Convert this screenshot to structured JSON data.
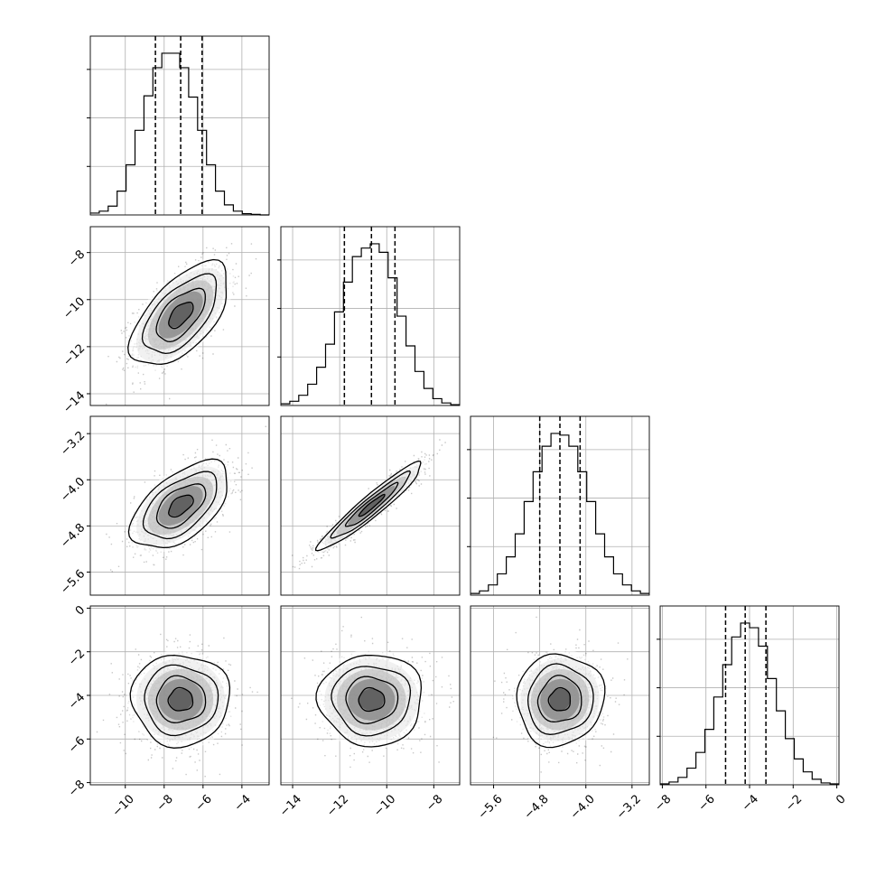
{
  "chart_data": {
    "type": "corner",
    "grid": true,
    "colors": {
      "ink": "#000000",
      "grid": "#b0b0b0",
      "scatter": "#000000"
    },
    "parameters": [
      {
        "ticks": [
          -10,
          -8,
          -6,
          -4
        ],
        "tick_labels": [
          "−10",
          "−8",
          "−6",
          "−4"
        ],
        "range": [
          -11.8,
          -2.6
        ]
      },
      {
        "ticks": [
          -14,
          -12,
          -10,
          -8
        ],
        "tick_labels": [
          "−14",
          "−12",
          "−10",
          "−8"
        ],
        "range": [
          -14.5,
          -6.9
        ]
      },
      {
        "ticks": [
          -5.6,
          -4.8,
          -4.0,
          -3.2
        ],
        "tick_labels": [
          "−5.6",
          "−4.8",
          "−4.0",
          "−3.2"
        ],
        "range": [
          -6.0,
          -2.9
        ]
      },
      {
        "ticks": [
          -8,
          -6,
          -4,
          -2,
          0
        ],
        "tick_labels": [
          "−8",
          "−6",
          "−4",
          "−2",
          "0"
        ],
        "range": [
          -8.1,
          0.1
        ]
      }
    ],
    "marginals": [
      {
        "quantiles": [
          -8.45,
          -7.15,
          -6.05
        ],
        "bin_edges": [
          -11.8,
          -11.34,
          -10.88,
          -10.42,
          -9.96,
          -9.5,
          -9.04,
          -8.58,
          -8.12,
          -7.66,
          -7.2,
          -6.74,
          -6.28,
          -5.82,
          -5.36,
          -4.9,
          -4.44,
          -3.98,
          -3.52,
          -3.06,
          -2.6
        ],
        "counts": [
          3,
          6,
          14,
          38,
          80,
          135,
          190,
          235,
          258,
          258,
          235,
          188,
          135,
          80,
          38,
          16,
          6,
          2,
          1,
          0
        ]
      },
      {
        "quantiles": [
          -11.8,
          -10.65,
          -9.65
        ],
        "bin_edges": [
          -14.5,
          -14.12,
          -13.74,
          -13.36,
          -12.98,
          -12.6,
          -12.22,
          -11.84,
          -11.46,
          -11.08,
          -10.7,
          -10.32,
          -9.94,
          -9.56,
          -9.18,
          -8.8,
          -8.42,
          -8.04,
          -7.66,
          -7.28,
          -6.9
        ],
        "counts": [
          2,
          5,
          12,
          25,
          45,
          72,
          110,
          145,
          175,
          185,
          190,
          180,
          150,
          105,
          70,
          40,
          20,
          8,
          3,
          1
        ]
      },
      {
        "quantiles": [
          -4.8,
          -4.45,
          -4.1
        ],
        "bin_edges": [
          -6.0,
          -5.845,
          -5.69,
          -5.535,
          -5.38,
          -5.225,
          -5.07,
          -4.915,
          -4.76,
          -4.605,
          -4.45,
          -4.295,
          -4.14,
          -3.985,
          -3.83,
          -3.675,
          -3.52,
          -3.365,
          -3.21,
          -3.055,
          -2.9
        ],
        "counts": [
          2,
          5,
          12,
          25,
          45,
          72,
          110,
          145,
          175,
          190,
          188,
          175,
          145,
          110,
          72,
          45,
          25,
          12,
          5,
          2
        ]
      },
      {
        "quantiles": [
          -5.1,
          -4.2,
          -3.25
        ],
        "bin_edges": [
          -8.1,
          -7.69,
          -7.28,
          -6.87,
          -6.46,
          -6.05,
          -5.64,
          -5.23,
          -4.82,
          -4.41,
          -4.0,
          -3.59,
          -3.18,
          -2.77,
          -2.36,
          -1.95,
          -1.54,
          -1.13,
          -0.72,
          -0.31,
          0.1
        ],
        "counts": [
          1,
          3,
          8,
          18,
          35,
          60,
          95,
          130,
          160,
          175,
          170,
          150,
          115,
          80,
          50,
          28,
          14,
          6,
          2,
          1
        ]
      }
    ],
    "joints": [
      {
        "x_param": 0,
        "y_param": 1,
        "mean": [
          -7.15,
          -10.65
        ],
        "sd": [
          1.2,
          1.05
        ],
        "corr": 0.6
      },
      {
        "x_param": 0,
        "y_param": 2,
        "mean": [
          -7.15,
          -4.45
        ],
        "sd": [
          1.2,
          0.36
        ],
        "corr": 0.55
      },
      {
        "x_param": 0,
        "y_param": 3,
        "mean": [
          -7.15,
          -4.2
        ],
        "sd": [
          1.2,
          1.0
        ],
        "corr": 0.0
      },
      {
        "x_param": 1,
        "y_param": 2,
        "mean": [
          -10.65,
          -4.45
        ],
        "sd": [
          1.05,
          0.36
        ],
        "corr": 0.95
      },
      {
        "x_param": 1,
        "y_param": 3,
        "mean": [
          -10.65,
          -4.2
        ],
        "sd": [
          1.05,
          1.0
        ],
        "corr": 0.0
      },
      {
        "x_param": 2,
        "y_param": 3,
        "mean": [
          -4.45,
          -4.2
        ],
        "sd": [
          0.36,
          1.0
        ],
        "corr": 0.05
      }
    ],
    "contour_levels_sigma": [
      0.5,
      1.0,
      1.5,
      2.0
    ]
  }
}
